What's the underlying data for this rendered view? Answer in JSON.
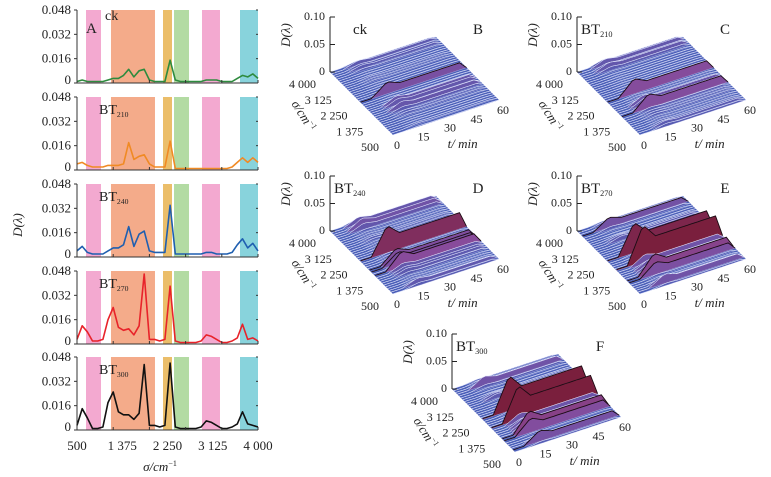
{
  "chart_data": [
    {
      "panel": "A",
      "type": "line",
      "xlabel": "σ/cm",
      "xlabel_sup": "−1",
      "ylabel": "D(λ)",
      "xlim": [
        500,
        4000
      ],
      "ylim": [
        0,
        0.048
      ],
      "xtick_labels": [
        "500",
        "1 375",
        "2 250",
        "3 125",
        "4 000"
      ],
      "xtick_values": [
        500,
        1375,
        2250,
        3125,
        4000
      ],
      "ytick_labels": [
        "0",
        "0.016",
        "0.032",
        "0.048"
      ],
      "ytick_values": [
        0,
        0.016,
        0.032,
        0.048
      ],
      "bands": [
        {
          "from": 674,
          "to": 964,
          "color": "#f3a9d0"
        },
        {
          "from": 1157,
          "to": 2008,
          "color": "#f4ab8a"
        },
        {
          "from": 2163,
          "to": 2337,
          "color": "#ebbe6a"
        },
        {
          "from": 2376,
          "to": 2666,
          "color": "#b3dba3"
        },
        {
          "from": 2917,
          "to": 3265,
          "color": "#f3a9d0"
        },
        {
          "from": 3652,
          "to": 4000,
          "color": "#88d3dc"
        }
      ],
      "x": [
        500,
        600,
        700,
        800,
        900,
        1000,
        1100,
        1200,
        1300,
        1400,
        1500,
        1600,
        1700,
        1800,
        1900,
        2000,
        2100,
        2200,
        2300,
        2400,
        2500,
        2600,
        2700,
        2800,
        2900,
        3000,
        3100,
        3200,
        3300,
        3400,
        3500,
        3600,
        3700,
        3800,
        3900,
        4000
      ],
      "series": [
        {
          "name": "ck",
          "sub": "",
          "color": "#2e8b3e",
          "values": [
            0.001,
            0.002,
            0.001,
            0.001,
            0.001,
            0.001,
            0.002,
            0.003,
            0.003,
            0.005,
            0.009,
            0.004,
            0.008,
            0.009,
            0.002,
            0.001,
            0.001,
            0.001,
            0.015,
            0.002,
            0.001,
            0.001,
            0.001,
            0.001,
            0.001,
            0.002,
            0.002,
            0.002,
            0.001,
            0.001,
            0.001,
            0.003,
            0.005,
            0.004,
            0.006,
            0.003
          ]
        },
        {
          "name": "BT",
          "sub": "210",
          "color": "#f08a24",
          "values": [
            0.004,
            0.005,
            0.003,
            0.002,
            0.002,
            0.002,
            0.003,
            0.003,
            0.003,
            0.004,
            0.018,
            0.007,
            0.009,
            0.01,
            0.004,
            0.002,
            0.002,
            0.002,
            0.019,
            0.001,
            0.001,
            0.001,
            0.001,
            0.001,
            0.001,
            0.001,
            0.001,
            0.001,
            0.001,
            0.001,
            0.002,
            0.005,
            0.008,
            0.005,
            0.008,
            0.005
          ]
        },
        {
          "name": "BT",
          "sub": "240",
          "color": "#1f5fb0",
          "values": [
            0.004,
            0.007,
            0.003,
            0.002,
            0.002,
            0.002,
            0.004,
            0.006,
            0.006,
            0.008,
            0.02,
            0.007,
            0.015,
            0.017,
            0.004,
            0.003,
            0.003,
            0.003,
            0.034,
            0.002,
            0.002,
            0.002,
            0.002,
            0.002,
            0.002,
            0.003,
            0.003,
            0.002,
            0.002,
            0.002,
            0.003,
            0.008,
            0.012,
            0.006,
            0.009,
            0.004
          ]
        },
        {
          "name": "BT",
          "sub": "270",
          "color": "#e8232a",
          "values": [
            0.003,
            0.012,
            0.008,
            0.002,
            0.002,
            0.003,
            0.016,
            0.024,
            0.011,
            0.009,
            0.01,
            0.006,
            0.012,
            0.046,
            0.003,
            0.003,
            0.002,
            0.003,
            0.038,
            0.002,
            0.001,
            0.001,
            0.001,
            0.001,
            0.002,
            0.006,
            0.005,
            0.003,
            0.001,
            0.001,
            0.002,
            0.004,
            0.013,
            0.003,
            0.004,
            0.002
          ]
        },
        {
          "name": "BT",
          "sub": "300",
          "color": "#111111",
          "values": [
            0.003,
            0.014,
            0.008,
            0.001,
            0.001,
            0.002,
            0.018,
            0.025,
            0.012,
            0.01,
            0.01,
            0.007,
            0.011,
            0.043,
            0.003,
            0.003,
            0.002,
            0.003,
            0.044,
            0.002,
            0.001,
            0.001,
            0.001,
            0.001,
            0.002,
            0.006,
            0.005,
            0.003,
            0.001,
            0.001,
            0.002,
            0.004,
            0.012,
            0.004,
            0.003,
            0.002
          ]
        }
      ]
    },
    {
      "panel": "B",
      "type": "surface",
      "sample": "ck",
      "sub": "",
      "source_series": 0
    },
    {
      "panel": "C",
      "type": "surface",
      "sample": "BT",
      "sub": "210",
      "source_series": 1
    },
    {
      "panel": "D",
      "type": "surface",
      "sample": "BT",
      "sub": "240",
      "source_series": 2
    },
    {
      "panel": "E",
      "type": "surface",
      "sample": "BT",
      "sub": "270",
      "source_series": 3
    },
    {
      "panel": "F",
      "type": "surface",
      "sample": "BT",
      "sub": "300",
      "source_series": 4
    }
  ],
  "surface_axes": {
    "zlabel": "D(λ)",
    "ztick_labels": [
      "0",
      "0.05",
      "0.10"
    ],
    "ztick_values": [
      0,
      0.05,
      0.1
    ],
    "ylabel": "σ/cm",
    "ylabel_sup": "−1",
    "ytick_labels": [
      "4 000",
      "3 125",
      "2 250",
      "1 375",
      "500"
    ],
    "ytick_values": [
      4000,
      3125,
      2250,
      1375,
      500
    ],
    "xlabel": "t/ min",
    "xtick_labels": [
      "0",
      "15",
      "30",
      "45",
      "60"
    ],
    "xtick_values": [
      0,
      15,
      30,
      45,
      60
    ],
    "colors": {
      "low": "#4b5fb8",
      "high": "#7a1f3d",
      "mid": "#8a4a9a"
    }
  }
}
